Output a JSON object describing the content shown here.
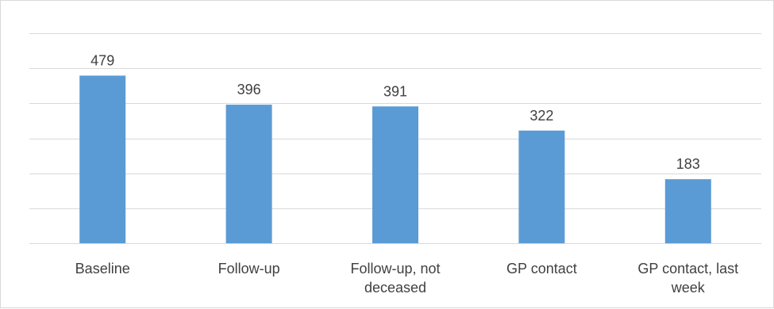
{
  "chart_data": {
    "type": "bar",
    "categories": [
      [
        "Baseline"
      ],
      [
        "Follow-up"
      ],
      [
        "Follow-up, not",
        "deceased"
      ],
      [
        "GP contact"
      ],
      [
        "GP contact, last",
        "week"
      ]
    ],
    "values": [
      479,
      396,
      391,
      322,
      183
    ],
    "data_labels": [
      "479",
      "396",
      "391",
      "322",
      "183"
    ],
    "title": "",
    "xlabel": "",
    "ylabel": "",
    "ylim": [
      0,
      600
    ],
    "y_tick_labels_shown": false,
    "grid": true,
    "legend": "none",
    "colors": {
      "bar": "#5b9bd5",
      "grid": "#d9d9d9",
      "text": "#404040",
      "border": "#d9d9d9"
    }
  }
}
